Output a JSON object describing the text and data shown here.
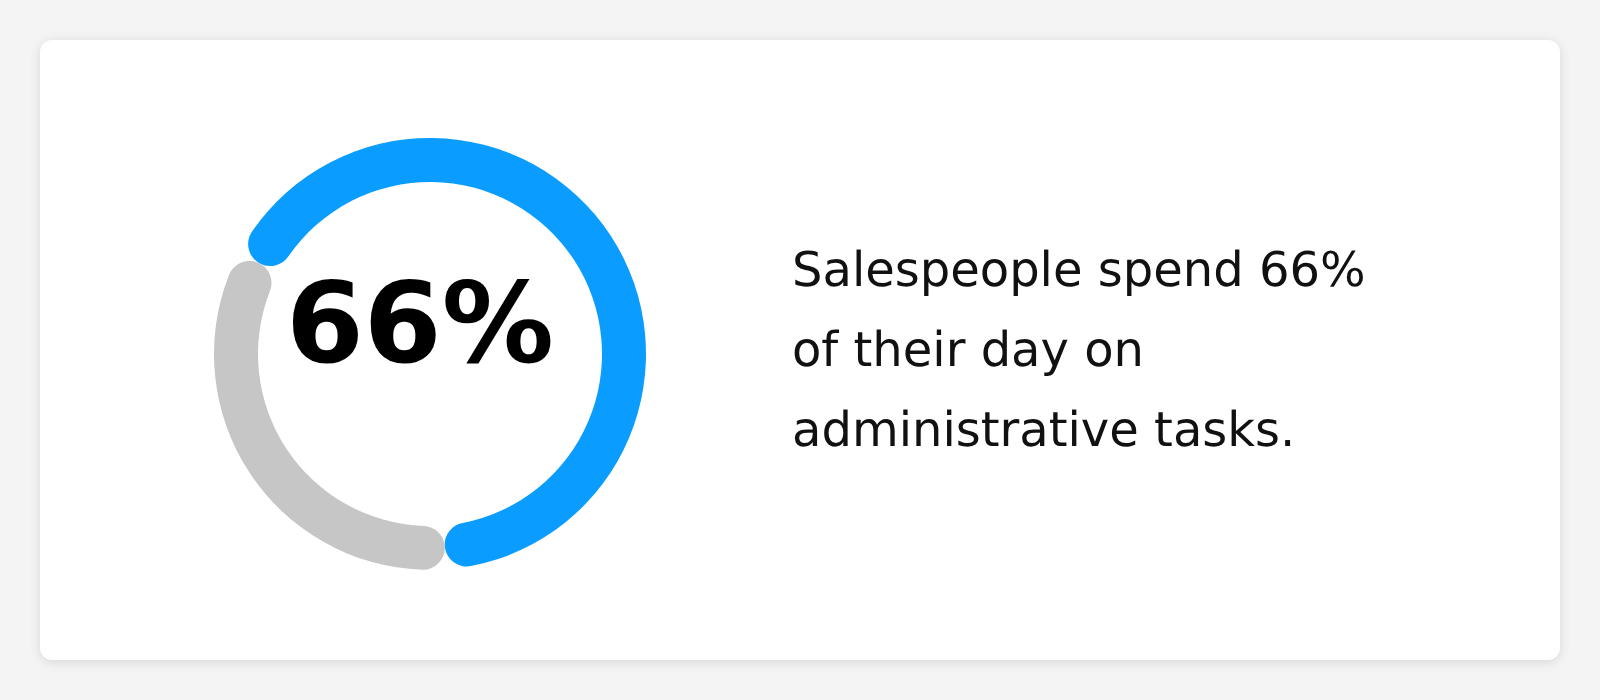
{
  "chart_data": {
    "type": "donut",
    "title": "Salespeople spend 66% of their day on administrative tasks.",
    "categories": [
      null,
      null
    ],
    "values": [
      66,
      34
    ],
    "colors": [
      "#0a9dff",
      "#c6c6c6"
    ],
    "annotations": [
      "66%"
    ]
  }
}
